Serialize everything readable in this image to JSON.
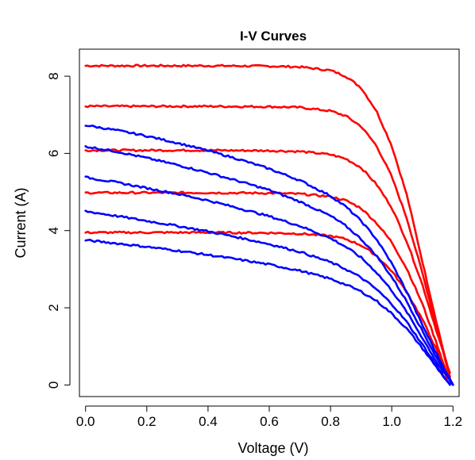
{
  "chart_data": {
    "type": "line",
    "title": "I-V Curves",
    "xlabel": "Voltage (V)",
    "ylabel": "Current (A)",
    "xlim": [
      -0.02,
      1.22
    ],
    "ylim": [
      -0.3,
      8.7
    ],
    "x_ticks": [
      0.0,
      0.2,
      0.4,
      0.6,
      0.8,
      1.0,
      1.2
    ],
    "x_tick_labels": [
      "0.0",
      "0.2",
      "0.4",
      "0.6",
      "0.8",
      "1.0",
      "1.2"
    ],
    "y_ticks": [
      0,
      2,
      4,
      6,
      8
    ],
    "y_tick_labels": [
      "0",
      "2",
      "4",
      "6",
      "8"
    ],
    "grid": false,
    "legend": "none",
    "colors": {
      "red": "#ff0000",
      "blue": "#0000ff"
    },
    "series": [
      {
        "color": "#ff0000",
        "x": [
          0.0,
          0.2,
          0.4,
          0.6,
          0.7,
          0.8,
          0.85,
          0.9,
          0.95,
          1.0,
          1.05,
          1.1,
          1.15,
          1.19
        ],
        "y": [
          8.27,
          8.27,
          8.27,
          8.26,
          8.24,
          8.15,
          8.0,
          7.7,
          7.1,
          6.2,
          4.9,
          3.2,
          1.5,
          0.2
        ]
      },
      {
        "color": "#ff0000",
        "x": [
          0.0,
          0.2,
          0.4,
          0.6,
          0.7,
          0.8,
          0.85,
          0.9,
          0.95,
          1.0,
          1.05,
          1.1,
          1.15,
          1.19
        ],
        "y": [
          7.22,
          7.22,
          7.22,
          7.21,
          7.19,
          7.1,
          6.97,
          6.7,
          6.2,
          5.4,
          4.3,
          2.9,
          1.4,
          0.2
        ]
      },
      {
        "color": "#ff0000",
        "x": [
          0.0,
          0.2,
          0.4,
          0.6,
          0.7,
          0.8,
          0.85,
          0.9,
          0.95,
          1.0,
          1.05,
          1.1,
          1.15,
          1.19
        ],
        "y": [
          6.08,
          6.08,
          6.08,
          6.07,
          6.05,
          5.97,
          5.86,
          5.63,
          5.2,
          4.6,
          3.7,
          2.6,
          1.3,
          0.3
        ]
      },
      {
        "color": "#ff0000",
        "x": [
          0.0,
          0.2,
          0.4,
          0.6,
          0.7,
          0.8,
          0.85,
          0.9,
          0.95,
          1.0,
          1.05,
          1.1,
          1.15,
          1.18
        ],
        "y": [
          4.98,
          4.98,
          4.98,
          4.97,
          4.95,
          4.88,
          4.78,
          4.58,
          4.2,
          3.7,
          3.0,
          2.1,
          1.0,
          0.3
        ]
      },
      {
        "color": "#ff0000",
        "x": [
          0.0,
          0.2,
          0.4,
          0.6,
          0.7,
          0.8,
          0.85,
          0.9,
          0.95,
          1.0,
          1.05,
          1.1,
          1.15,
          1.18
        ],
        "y": [
          3.95,
          3.95,
          3.95,
          3.94,
          3.92,
          3.86,
          3.78,
          3.62,
          3.35,
          2.95,
          2.4,
          1.7,
          0.85,
          0.15
        ]
      },
      {
        "color": "#0000ff",
        "x": [
          0.0,
          0.1,
          0.2,
          0.3,
          0.4,
          0.5,
          0.6,
          0.7,
          0.8,
          0.85,
          0.9,
          0.95,
          1.0,
          1.05,
          1.1,
          1.15,
          1.2
        ],
        "y": [
          6.73,
          6.6,
          6.45,
          6.27,
          6.07,
          5.85,
          5.6,
          5.3,
          4.9,
          4.62,
          4.25,
          3.78,
          3.15,
          2.4,
          1.55,
          0.75,
          0.0
        ]
      },
      {
        "color": "#0000ff",
        "x": [
          0.0,
          0.1,
          0.2,
          0.3,
          0.4,
          0.5,
          0.6,
          0.7,
          0.8,
          0.85,
          0.9,
          0.95,
          1.0,
          1.05,
          1.1,
          1.15,
          1.2
        ],
        "y": [
          6.18,
          6.05,
          5.88,
          5.7,
          5.5,
          5.28,
          5.05,
          4.75,
          4.38,
          4.12,
          3.78,
          3.35,
          2.8,
          2.15,
          1.4,
          0.65,
          0.0
        ]
      },
      {
        "color": "#0000ff",
        "x": [
          0.0,
          0.1,
          0.2,
          0.3,
          0.4,
          0.5,
          0.6,
          0.7,
          0.8,
          0.85,
          0.9,
          0.95,
          1.0,
          1.05,
          1.1,
          1.15,
          1.2
        ],
        "y": [
          5.38,
          5.25,
          5.1,
          4.95,
          4.78,
          4.58,
          4.37,
          4.12,
          3.8,
          3.58,
          3.3,
          2.92,
          2.45,
          1.88,
          1.22,
          0.55,
          0.0
        ]
      },
      {
        "color": "#0000ff",
        "x": [
          0.0,
          0.1,
          0.2,
          0.3,
          0.4,
          0.5,
          0.6,
          0.7,
          0.8,
          0.85,
          0.9,
          0.95,
          1.0,
          1.05,
          1.1,
          1.15,
          1.19
        ],
        "y": [
          4.5,
          4.38,
          4.25,
          4.12,
          3.98,
          3.82,
          3.65,
          3.45,
          3.18,
          3.0,
          2.78,
          2.48,
          2.1,
          1.62,
          1.05,
          0.45,
          0.0
        ]
      },
      {
        "color": "#0000ff",
        "x": [
          0.0,
          0.1,
          0.2,
          0.3,
          0.4,
          0.5,
          0.6,
          0.7,
          0.8,
          0.85,
          0.9,
          0.95,
          1.0,
          1.05,
          1.1,
          1.15,
          1.19
        ],
        "y": [
          3.75,
          3.67,
          3.58,
          3.48,
          3.37,
          3.25,
          3.12,
          2.96,
          2.75,
          2.6,
          2.42,
          2.18,
          1.85,
          1.45,
          0.95,
          0.42,
          0.0
        ]
      }
    ]
  }
}
